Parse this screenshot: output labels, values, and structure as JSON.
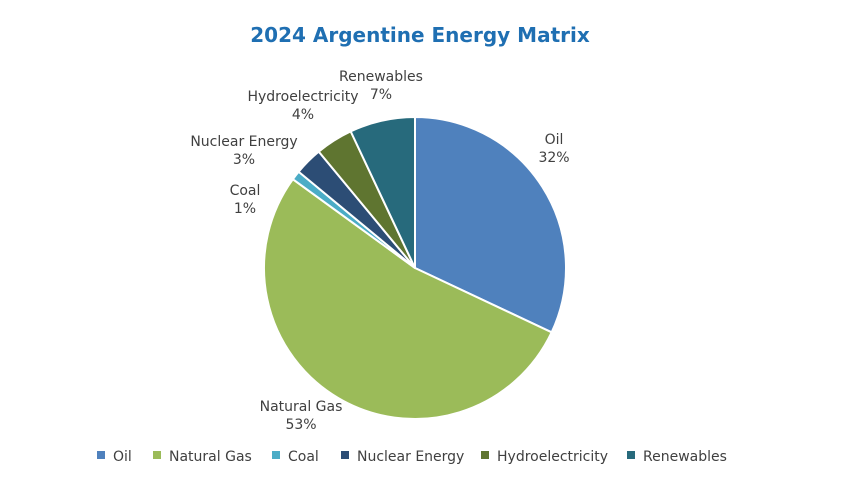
{
  "chart_data": {
    "type": "pie",
    "title": "2024 Argentine Energy Matrix",
    "legend_position": "bottom",
    "slices": [
      {
        "name": "Oil",
        "value": 32,
        "label": "32%",
        "color": "#4f81bd"
      },
      {
        "name": "Natural Gas",
        "value": 53,
        "label": "53%",
        "color": "#9bbb59"
      },
      {
        "name": "Coal",
        "value": 1,
        "label": "1%",
        "color": "#4bacc6"
      },
      {
        "name": "Nuclear Energy",
        "value": 3,
        "label": "3%",
        "color": "#2c4d75"
      },
      {
        "name": "Hydroelectricity",
        "value": 4,
        "label": "4%",
        "color": "#5f7530"
      },
      {
        "name": "Renewables",
        "value": 7,
        "label": "7%",
        "color": "#276a7c"
      }
    ]
  }
}
